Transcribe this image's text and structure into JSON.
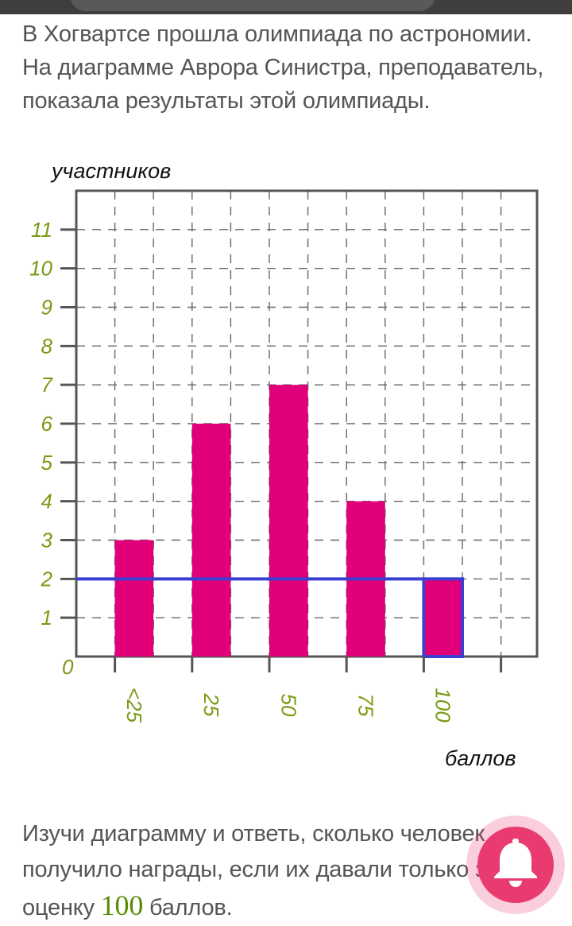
{
  "text": {
    "intro": "В Хогвартсе прошла олимпиада по астрономии. На диаграмме Аврора Синистра, преподаватель, показала результаты этой олимпиады.",
    "question_before": "Изучи диаграмму и ответь, сколько человек получило награды, если их давали только за оценку ",
    "question_highlight": "100",
    "question_after": " баллов."
  },
  "chart_data": {
    "type": "bar",
    "ylabel": "участников",
    "xlabel": "баллов",
    "categories": [
      "<25",
      "25",
      "50",
      "75",
      "100"
    ],
    "values": [
      3,
      6,
      7,
      4,
      2
    ],
    "ylim": [
      0,
      12
    ],
    "yticks": [
      1,
      2,
      3,
      4,
      5,
      6,
      7,
      8,
      9,
      10,
      11
    ],
    "origin_label": "0",
    "grid": "dashed",
    "highlight": {
      "category": "100",
      "value": 2
    },
    "colors": {
      "bar": "#e2007a",
      "highlight": "#3a3fd1",
      "tick_label": "#7a9a14",
      "axis": "#555555",
      "grid": "#666666"
    }
  },
  "icons": {
    "fab": "bell-icon"
  }
}
